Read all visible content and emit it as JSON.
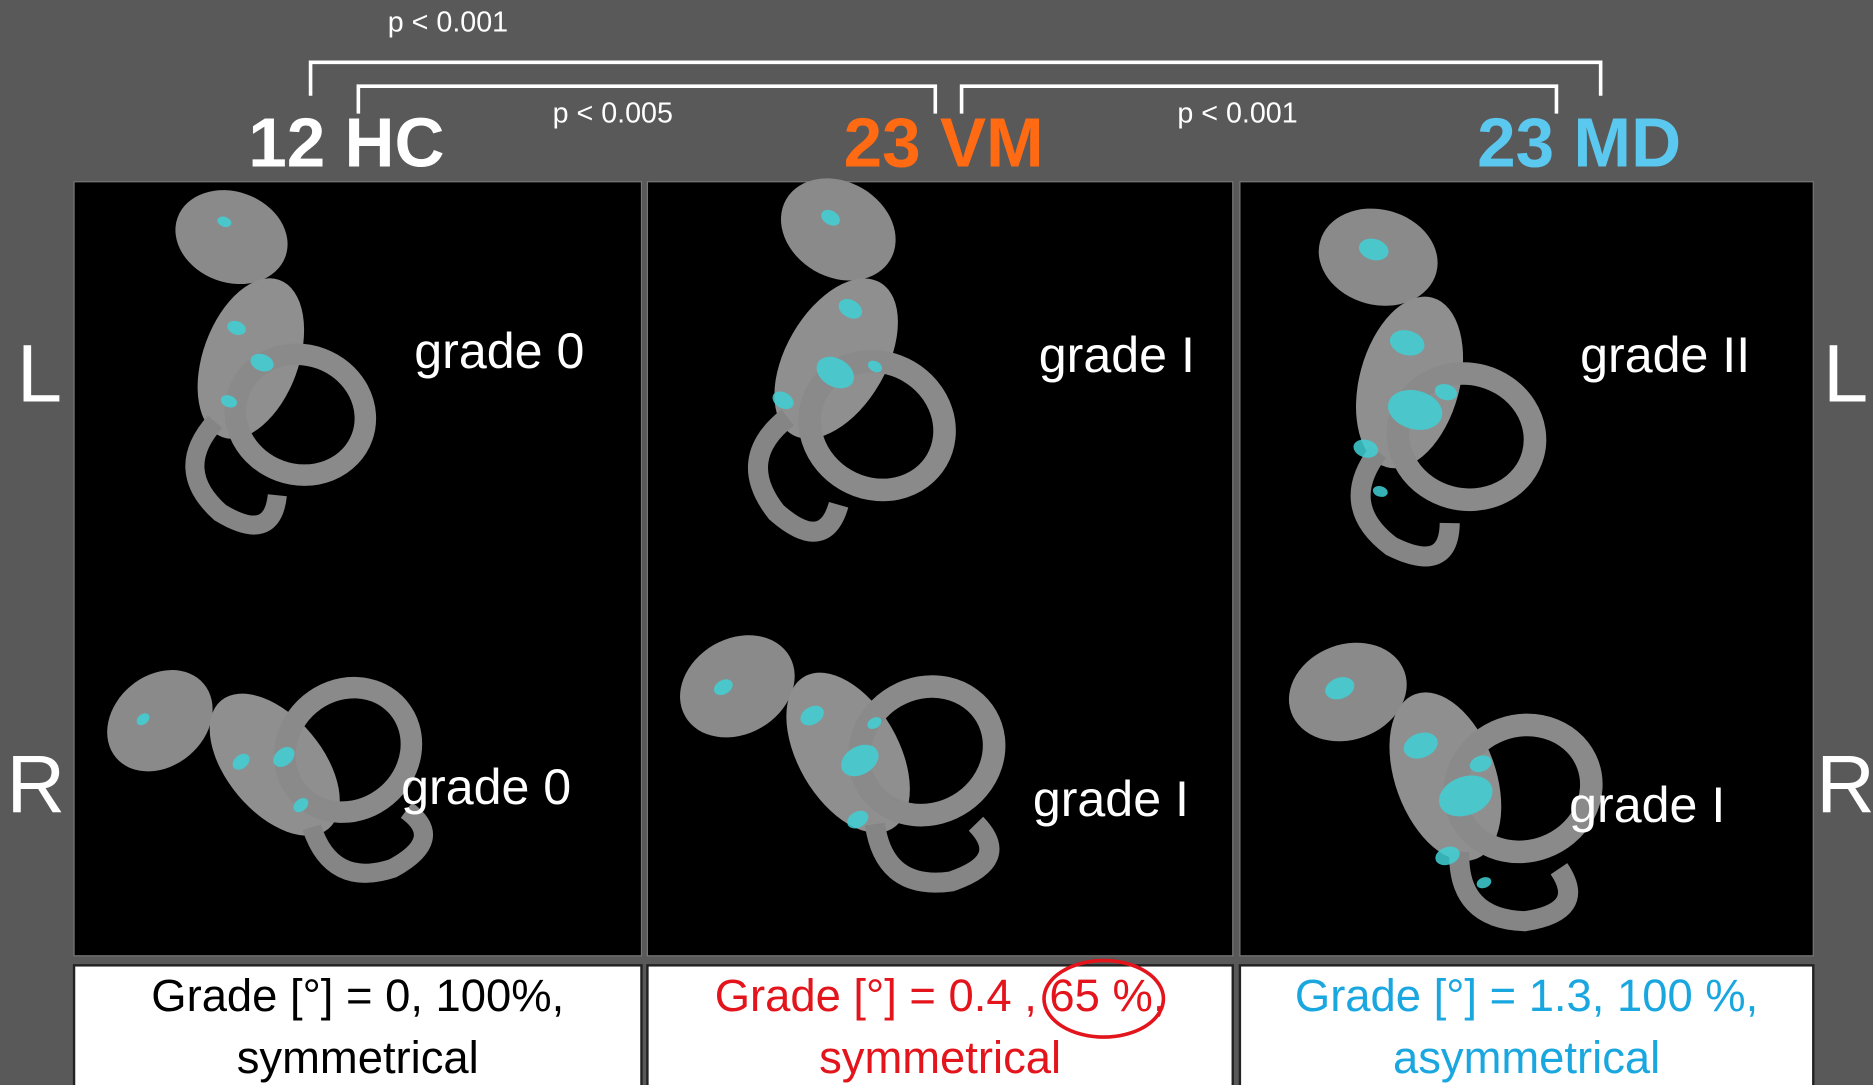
{
  "comparisons": [
    {
      "label": "p < 0.001"
    },
    {
      "label": "p < 0.005"
    },
    {
      "label": "p < 0.001"
    }
  ],
  "sides": [
    "L",
    "R"
  ],
  "groups": [
    {
      "title": "12 HC",
      "title_color": "#ffffff",
      "grades": [
        "grade 0",
        "grade 0"
      ],
      "summary": [
        "Grade [°] = 0, 100%,",
        "symmetrical"
      ],
      "summary_color": "#000000"
    },
    {
      "title": "23 VM",
      "title_color": "#ff6a13",
      "grades": [
        "grade I",
        "grade I"
      ],
      "summary": [
        "Grade [°] = 0.4 , 65 %,",
        "symmetrical"
      ],
      "summary_color": "#e3141b"
    },
    {
      "title": "23 MD",
      "title_color": "#5bc8ef",
      "grades": [
        "grade II",
        "grade I"
      ],
      "summary": [
        "Grade [°] = 1.3, 100 %,",
        "asymmetrical"
      ],
      "summary_color": "#1aa7e0"
    }
  ]
}
